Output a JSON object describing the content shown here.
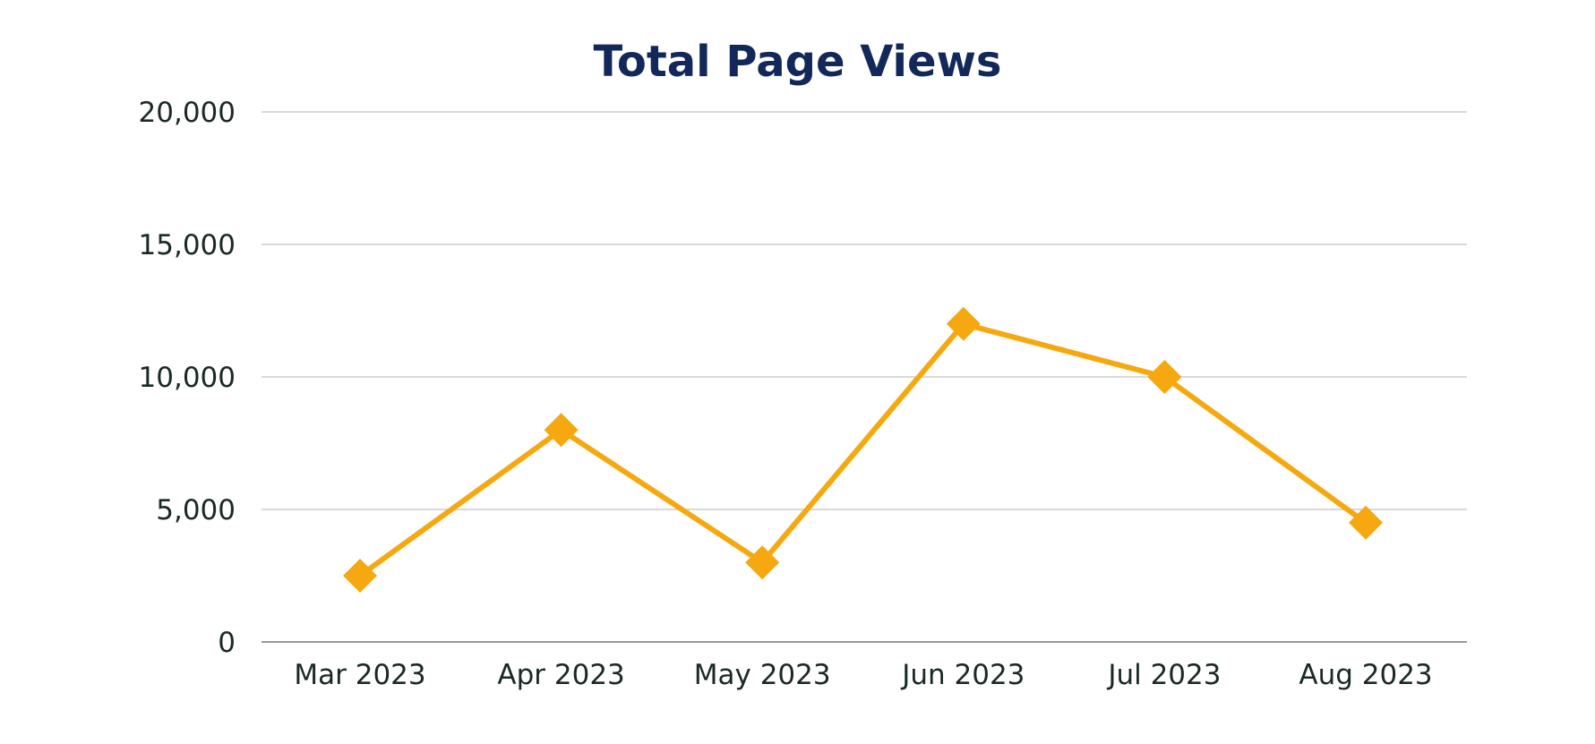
{
  "chart_data": {
    "type": "line",
    "title": "Total Page Views",
    "xlabel": "",
    "ylabel": "",
    "categories": [
      "Mar 2023",
      "Apr 2023",
      "May 2023",
      "Jun 2023",
      "Jul 2023",
      "Aug 2023"
    ],
    "series": [
      {
        "values": [
          2500,
          8000,
          3000,
          12000,
          10000,
          4500
        ],
        "color": "#f5a80f",
        "marker": "diamond"
      }
    ],
    "ylim": [
      0,
      20000
    ],
    "yticks": [
      0,
      5000,
      10000,
      15000,
      20000
    ],
    "ytick_labels": [
      "0",
      "5,000",
      "10,000",
      "15,000",
      "20,000"
    ],
    "grid": "horizontal",
    "legend": "none"
  }
}
